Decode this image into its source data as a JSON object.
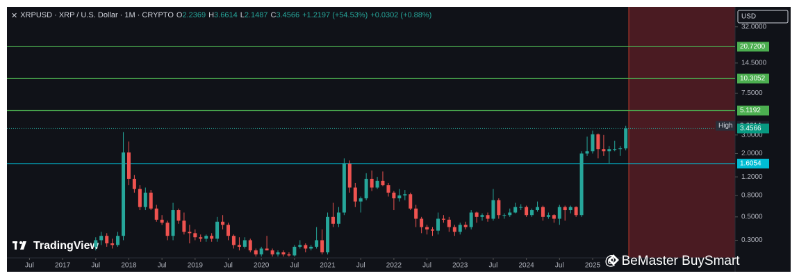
{
  "header": {
    "symbol": "XRPUSD · XRP / U.S. Dollar · 1M · CRYPTO",
    "o": "O",
    "h": "H",
    "l": "L",
    "c": "C",
    "change": "+1.2197 (+54.53%)",
    "extra": "+0.0302 (+0.88%)"
  },
  "currency": "USD",
  "logo": "TradingView",
  "watermark": "@ BeMaster BuySmart",
  "chart_data": {
    "type": "candlestick",
    "log_scale": true,
    "up_color": "#26a69a",
    "down_color": "#ef5350",
    "xlim": [
      2016.16,
      2027.15
    ],
    "ylim": [
      0.21,
      48
    ],
    "yticks": [
      {
        "value": 32,
        "label": "32.0000"
      },
      {
        "value": 14.5,
        "label": "14.5000"
      },
      {
        "value": 7.5,
        "label": "7.5000"
      },
      {
        "value": 3,
        "label": "3.0000"
      },
      {
        "value": 2,
        "label": "2.0000"
      },
      {
        "value": 1.2,
        "label": "1.2000"
      },
      {
        "value": 0.8,
        "label": "0.8000"
      },
      {
        "value": 0.5,
        "label": "0.5000"
      },
      {
        "value": 0.3,
        "label": "0.3000"
      }
    ],
    "xticks": [
      {
        "value": 2016.5,
        "label": "Jul"
      },
      2017,
      {
        "value": 2017.5,
        "label": "Jul"
      },
      2018,
      {
        "value": 2018.5,
        "label": "Jul"
      },
      2019,
      {
        "value": 2019.5,
        "label": "Jul"
      },
      2020,
      {
        "value": 2020.5,
        "label": "Jul"
      },
      2021,
      {
        "value": 2021.5,
        "label": "Jul"
      },
      2022,
      {
        "value": 2022.5,
        "label": "Jul"
      },
      2023,
      {
        "value": 2023.5,
        "label": "Jul"
      },
      2024,
      {
        "value": 2024.5,
        "label": "Jul"
      },
      2025
    ],
    "x": [
      2017.5,
      2017.583,
      2017.667,
      2017.75,
      2017.833,
      2017.917,
      2018,
      2018.083,
      2018.167,
      2018.25,
      2018.333,
      2018.417,
      2018.5,
      2018.583,
      2018.667,
      2018.75,
      2018.833,
      2018.917,
      2019,
      2019.083,
      2019.167,
      2019.25,
      2019.333,
      2019.417,
      2019.5,
      2019.583,
      2019.667,
      2019.75,
      2019.833,
      2019.917,
      2020,
      2020.083,
      2020.167,
      2020.25,
      2020.333,
      2020.417,
      2020.5,
      2020.583,
      2020.667,
      2020.75,
      2020.833,
      2020.917,
      2021,
      2021.083,
      2021.167,
      2021.25,
      2021.333,
      2021.417,
      2021.5,
      2021.583,
      2021.667,
      2021.75,
      2021.833,
      2021.917,
      2022,
      2022.083,
      2022.167,
      2022.25,
      2022.333,
      2022.417,
      2022.5,
      2022.583,
      2022.667,
      2022.75,
      2022.833,
      2022.917,
      2023,
      2023.083,
      2023.167,
      2023.25,
      2023.333,
      2023.417,
      2023.5,
      2023.583,
      2023.667,
      2023.75,
      2023.833,
      2023.917,
      2024,
      2024.083,
      2024.167,
      2024.25,
      2024.333,
      2024.417,
      2024.5,
      2024.583,
      2024.667,
      2024.75,
      2024.833,
      2024.917,
      2025,
      2025.083,
      2025.167,
      2025.25,
      2025.333,
      2025.417,
      2025.5
    ],
    "open": [
      0.26,
      0.3,
      0.33,
      0.28,
      0.27,
      0.33,
      2.05,
      1.15,
      0.92,
      0.62,
      0.85,
      0.6,
      0.47,
      0.44,
      0.33,
      0.58,
      0.46,
      0.36,
      0.35,
      0.32,
      0.31,
      0.33,
      0.31,
      0.45,
      0.42,
      0.33,
      0.27,
      0.26,
      0.3,
      0.24,
      0.22,
      0.25,
      0.24,
      0.22,
      0.23,
      0.22,
      0.215,
      0.26,
      0.27,
      0.25,
      0.26,
      0.3,
      0.23,
      0.5,
      0.43,
      0.55,
      1.6,
      0.95,
      0.7,
      0.75,
      1.15,
      0.95,
      1.1,
      1.0,
      0.85,
      0.75,
      0.8,
      0.82,
      0.6,
      0.48,
      0.4,
      0.38,
      0.37,
      0.48,
      0.47,
      0.4,
      0.36,
      0.42,
      0.4,
      0.55,
      0.5,
      0.52,
      0.48,
      0.72,
      0.52,
      0.52,
      0.55,
      0.62,
      0.62,
      0.52,
      0.58,
      0.62,
      0.5,
      0.52,
      0.48,
      0.62,
      0.58,
      0.62,
      0.52,
      2.0,
      2.1,
      3.05,
      2.2,
      2.1,
      2.2,
      2.2,
      2.2369
    ],
    "high": [
      0.32,
      0.36,
      0.35,
      0.31,
      0.36,
      3.2,
      2.6,
      1.25,
      1.0,
      0.95,
      0.9,
      0.65,
      0.52,
      0.46,
      0.68,
      0.6,
      0.55,
      0.42,
      0.38,
      0.34,
      0.34,
      0.35,
      0.5,
      0.52,
      0.44,
      0.34,
      0.32,
      0.32,
      0.31,
      0.25,
      0.26,
      0.33,
      0.25,
      0.24,
      0.24,
      0.23,
      0.27,
      0.3,
      0.28,
      0.27,
      0.4,
      0.38,
      0.55,
      0.68,
      0.62,
      1.8,
      1.72,
      1.05,
      0.78,
      1.3,
      1.38,
      1.2,
      1.35,
      1.05,
      0.88,
      0.92,
      0.9,
      0.85,
      0.65,
      0.5,
      0.42,
      0.4,
      0.55,
      0.52,
      0.5,
      0.42,
      0.44,
      0.45,
      0.58,
      0.56,
      0.54,
      0.55,
      0.92,
      0.75,
      0.54,
      0.6,
      0.68,
      0.66,
      0.64,
      0.6,
      0.7,
      0.64,
      0.55,
      0.53,
      0.65,
      0.64,
      0.64,
      0.63,
      2.1,
      2.9,
      3.3,
      3.1,
      3.0,
      2.35,
      2.65,
      2.35,
      3.6614
    ],
    "low": [
      0.24,
      0.27,
      0.26,
      0.25,
      0.26,
      0.3,
      1.0,
      0.85,
      0.58,
      0.58,
      0.58,
      0.45,
      0.42,
      0.3,
      0.3,
      0.43,
      0.34,
      0.28,
      0.3,
      0.29,
      0.29,
      0.29,
      0.29,
      0.38,
      0.3,
      0.25,
      0.24,
      0.25,
      0.23,
      0.21,
      0.21,
      0.24,
      0.21,
      0.21,
      0.21,
      0.21,
      0.21,
      0.25,
      0.23,
      0.24,
      0.25,
      0.22,
      0.22,
      0.4,
      0.4,
      0.52,
      0.85,
      0.62,
      0.55,
      0.72,
      0.88,
      0.92,
      0.98,
      0.78,
      0.58,
      0.7,
      0.72,
      0.58,
      0.4,
      0.35,
      0.34,
      0.33,
      0.34,
      0.44,
      0.36,
      0.33,
      0.34,
      0.38,
      0.38,
      0.44,
      0.46,
      0.45,
      0.46,
      0.48,
      0.48,
      0.5,
      0.54,
      0.58,
      0.5,
      0.5,
      0.56,
      0.46,
      0.48,
      0.44,
      0.42,
      0.46,
      0.54,
      0.5,
      0.5,
      1.9,
      2.0,
      1.8,
      1.9,
      1.6,
      2.1,
      1.9,
      2.1487
    ],
    "close": [
      0.3,
      0.33,
      0.28,
      0.27,
      0.33,
      2.05,
      1.15,
      0.92,
      0.62,
      0.85,
      0.6,
      0.47,
      0.44,
      0.33,
      0.58,
      0.46,
      0.36,
      0.35,
      0.32,
      0.31,
      0.33,
      0.31,
      0.45,
      0.42,
      0.33,
      0.27,
      0.26,
      0.3,
      0.24,
      0.22,
      0.25,
      0.24,
      0.22,
      0.23,
      0.22,
      0.215,
      0.26,
      0.27,
      0.25,
      0.26,
      0.3,
      0.23,
      0.5,
      0.43,
      0.55,
      1.6,
      0.95,
      0.7,
      0.75,
      1.15,
      0.95,
      1.1,
      1.0,
      0.85,
      0.75,
      0.8,
      0.82,
      0.6,
      0.48,
      0.4,
      0.38,
      0.37,
      0.48,
      0.47,
      0.4,
      0.36,
      0.42,
      0.4,
      0.55,
      0.5,
      0.52,
      0.48,
      0.72,
      0.52,
      0.52,
      0.55,
      0.62,
      0.62,
      0.52,
      0.58,
      0.62,
      0.5,
      0.52,
      0.48,
      0.62,
      0.58,
      0.62,
      0.52,
      2.0,
      2.1,
      3.05,
      2.2,
      2.1,
      2.2,
      2.2,
      2.24,
      3.4566
    ],
    "levels": [
      {
        "value": 20.72,
        "label": "20.7200",
        "color": "#4caf50"
      },
      {
        "value": 10.3052,
        "label": "10.3052",
        "color": "#4caf50"
      },
      {
        "value": 5.1192,
        "label": "5.1192",
        "color": "#4caf50"
      },
      {
        "value": 1.6054,
        "label": "1.6054",
        "color": "#00bcd4"
      }
    ],
    "high_label": "High"
  }
}
